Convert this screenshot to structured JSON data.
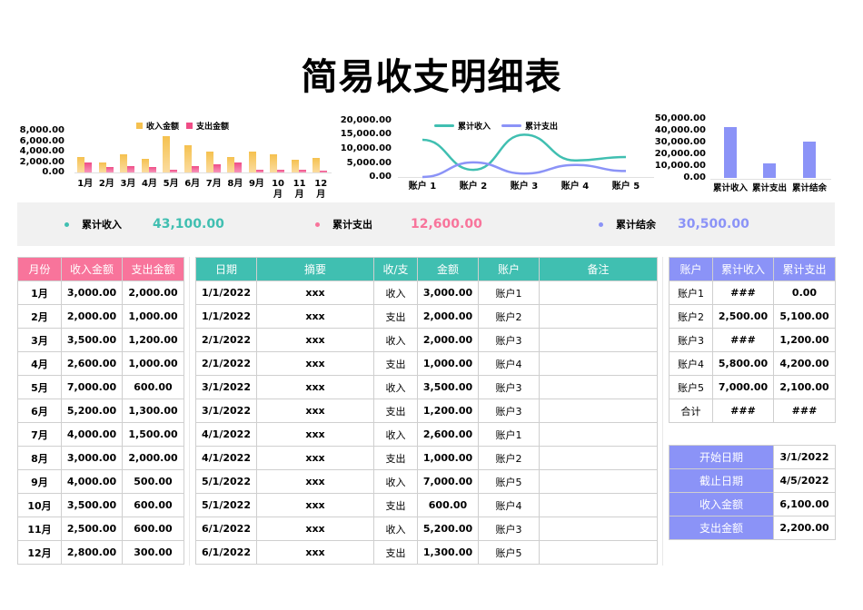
{
  "title": "简易收支明细表",
  "colors": {
    "income_bar": "#f5c14f",
    "expense_bar": "#ef4d86",
    "teal": "#40bfb1",
    "pink": "#f8749b",
    "blue": "#8b93f7",
    "summary_bg": "#f1f1f1"
  },
  "chart_data": [
    {
      "type": "bar",
      "title": "",
      "categories": [
        "1月",
        "2月",
        "3月",
        "4月",
        "5月",
        "6月",
        "7月",
        "8月",
        "9月",
        "10月",
        "11月",
        "12月"
      ],
      "series": [
        {
          "name": "收入金额",
          "values": [
            3000,
            2000,
            3500,
            2600,
            7000,
            5200,
            4000,
            3000,
            4000,
            3500,
            2500,
            2800
          ]
        },
        {
          "name": "支出金额",
          "values": [
            2000,
            1000,
            1200,
            1000,
            600,
            1300,
            1500,
            2000,
            500,
            600,
            600,
            300
          ]
        }
      ],
      "yticks": [
        "8,000.00",
        "6,000.00",
        "4,000.00",
        "2,000.00",
        "0.00"
      ],
      "ylim": [
        0,
        8000
      ],
      "legend_position": "top",
      "xlabel": "",
      "ylabel": ""
    },
    {
      "type": "line",
      "title": "",
      "categories": [
        "账户 1",
        "账户 2",
        "账户 3",
        "账户 4",
        "账户 5"
      ],
      "series": [
        {
          "name": "累计收入",
          "values": [
            13000,
            2500,
            14800,
            5800,
            7000
          ]
        },
        {
          "name": "累计支出",
          "values": [
            0,
            5100,
            1200,
            4200,
            2100
          ]
        }
      ],
      "yticks": [
        "20,000.00",
        "15,000.00",
        "10,000.00",
        "5,000.00",
        "0.00"
      ],
      "ylim": [
        0,
        20000
      ],
      "legend_position": "top",
      "xlabel": "",
      "ylabel": ""
    },
    {
      "type": "bar",
      "title": "",
      "categories": [
        "累计收入",
        "累计支出",
        "累计结余"
      ],
      "values": [
        43100,
        12600,
        30500
      ],
      "yticks": [
        "50,000.00",
        "40,000.00",
        "30,000.00",
        "20,000.00",
        "10,000.00",
        "0.00"
      ],
      "ylim": [
        0,
        50000
      ],
      "xlabel": "",
      "ylabel": ""
    }
  ],
  "charts": {
    "monthly": {
      "legend": [
        "收入金额",
        "支出金额"
      ],
      "yticks": [
        "8,000.00",
        "6,000.00",
        "4,000.00",
        "2,000.00",
        "0.00"
      ],
      "xlabels": [
        "1月",
        "2月",
        "3月",
        "4月",
        "5月",
        "6月",
        "7月",
        "8月",
        "9月",
        "10\n月",
        "11\n月",
        "12\n月"
      ]
    },
    "account": {
      "legend": [
        "累计收入",
        "累计支出"
      ],
      "yticks": [
        "20,000.00",
        "15,000.00",
        "10,000.00",
        "5,000.00",
        "0.00"
      ],
      "xlabels": [
        "账户 1",
        "账户 2",
        "账户 3",
        "账户 4",
        "账户 5"
      ]
    },
    "total": {
      "yticks": [
        "50,000.00",
        "40,000.00",
        "30,000.00",
        "20,000.00",
        "10,000.00",
        "0.00"
      ],
      "xlabels": [
        "累计收入",
        "累计支出",
        "累计结余"
      ]
    }
  },
  "summary": [
    {
      "label": "累计收入",
      "value": "43,100.00",
      "color": "#40bfb1"
    },
    {
      "label": "累计支出",
      "value": "12,600.00",
      "color": "#f8749b"
    },
    {
      "label": "累计结余",
      "value": "30,500.00",
      "color": "#8b93f7"
    }
  ],
  "monthly_table": {
    "headers": [
      "月份",
      "收入金额",
      "支出金额"
    ],
    "rows": [
      [
        "1月",
        "3,000.00",
        "2,000.00"
      ],
      [
        "2月",
        "2,000.00",
        "1,000.00"
      ],
      [
        "3月",
        "3,500.00",
        "1,200.00"
      ],
      [
        "4月",
        "2,600.00",
        "1,000.00"
      ],
      [
        "5月",
        "7,000.00",
        "600.00"
      ],
      [
        "6月",
        "5,200.00",
        "1,300.00"
      ],
      [
        "7月",
        "4,000.00",
        "1,500.00"
      ],
      [
        "8月",
        "3,000.00",
        "2,000.00"
      ],
      [
        "9月",
        "4,000.00",
        "500.00"
      ],
      [
        "10月",
        "3,500.00",
        "600.00"
      ],
      [
        "11月",
        "2,500.00",
        "600.00"
      ],
      [
        "12月",
        "2,800.00",
        "300.00"
      ]
    ]
  },
  "detail_table": {
    "headers": [
      "日期",
      "摘要",
      "收/支",
      "金额",
      "账户",
      "备注"
    ],
    "rows": [
      [
        "1/1/2022",
        "xxx",
        "收入",
        "3,000.00",
        "账户1",
        ""
      ],
      [
        "1/1/2022",
        "xxx",
        "支出",
        "2,000.00",
        "账户2",
        ""
      ],
      [
        "2/1/2022",
        "xxx",
        "收入",
        "2,000.00",
        "账户3",
        ""
      ],
      [
        "2/1/2022",
        "xxx",
        "支出",
        "1,000.00",
        "账户4",
        ""
      ],
      [
        "3/1/2022",
        "xxx",
        "收入",
        "3,500.00",
        "账户3",
        ""
      ],
      [
        "3/1/2022",
        "xxx",
        "支出",
        "1,200.00",
        "账户3",
        ""
      ],
      [
        "4/1/2022",
        "xxx",
        "收入",
        "2,600.00",
        "账户1",
        ""
      ],
      [
        "4/1/2022",
        "xxx",
        "支出",
        "1,000.00",
        "账户2",
        ""
      ],
      [
        "5/1/2022",
        "xxx",
        "收入",
        "7,000.00",
        "账户5",
        ""
      ],
      [
        "5/1/2022",
        "xxx",
        "支出",
        "600.00",
        "账户4",
        ""
      ],
      [
        "6/1/2022",
        "xxx",
        "收入",
        "5,200.00",
        "账户3",
        ""
      ],
      [
        "6/1/2022",
        "xxx",
        "支出",
        "1,300.00",
        "账户5",
        ""
      ]
    ]
  },
  "account_table": {
    "headers": [
      "账户",
      "累计收入",
      "累计支出"
    ],
    "rows": [
      [
        "账户1",
        "###",
        "0.00"
      ],
      [
        "账户2",
        "2,500.00",
        "5,100.00"
      ],
      [
        "账户3",
        "###",
        "1,200.00"
      ],
      [
        "账户4",
        "5,800.00",
        "4,200.00"
      ],
      [
        "账户5",
        "7,000.00",
        "2,100.00"
      ],
      [
        "合计",
        "###",
        "###"
      ]
    ]
  },
  "query_table": {
    "rows": [
      [
        "开始日期",
        "3/1/2022"
      ],
      [
        "截止日期",
        "4/5/2022"
      ],
      [
        "收入金额",
        "6,100.00"
      ],
      [
        "支出金额",
        "2,200.00"
      ]
    ]
  }
}
